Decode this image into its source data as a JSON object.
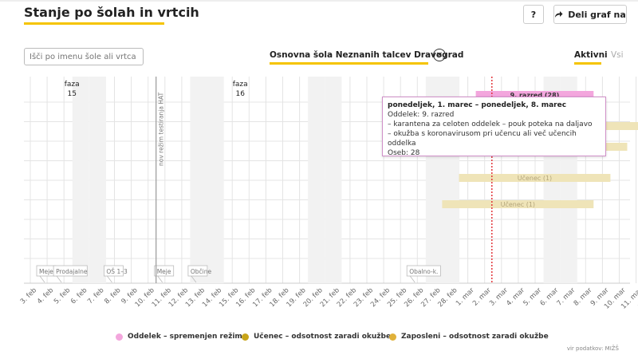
{
  "header": {
    "title": "Stanje po šolah in vrtcih",
    "help_label": "?",
    "share_label": "Deli graf na"
  },
  "filters": {
    "search_placeholder": "Išči po imenu šole ali vrtca",
    "selected_school": "Osnovna šola Neznanih talcev Dravograd",
    "tab_active": "Aktivni",
    "tab_all": "Vsi"
  },
  "chart_data": {
    "type": "timeline",
    "x_ticks": [
      "3. feb",
      "4. feb",
      "5. feb",
      "6. feb",
      "7. feb",
      "8. feb",
      "9. feb",
      "10. feb",
      "11. feb",
      "12. feb",
      "13. feb",
      "14. feb",
      "15. feb",
      "16. feb",
      "17. feb",
      "18. feb",
      "19. feb",
      "20. feb",
      "21. feb",
      "22. feb",
      "23. feb",
      "24. feb",
      "25. feb",
      "26. feb",
      "27. feb",
      "28. feb",
      "1. mar",
      "2. mar",
      "3. mar",
      "4. mar",
      "5. mar",
      "6. mar",
      "7. mar",
      "8. mar",
      "9. mar",
      "10. mar",
      "11. mar",
      "12. mar"
    ],
    "phases": [
      {
        "label": "faza",
        "number": "15",
        "tick": "5. feb"
      },
      {
        "label": "faza",
        "number": "16",
        "tick": "15. feb"
      }
    ],
    "markers": [
      {
        "label": "nov režim testiranja HAT",
        "tick": "10. feb"
      }
    ],
    "today_tick": "3. mar",
    "events": [
      {
        "label": "Meje",
        "from": "3. feb",
        "to": "4. feb"
      },
      {
        "label": "Prodajalne",
        "from": "4. feb",
        "to": "6. feb"
      },
      {
        "label": "OŠ 1–3",
        "from": "7. feb",
        "to": "8. feb"
      },
      {
        "label": "Meje",
        "from": "10. feb",
        "to": "11. feb"
      },
      {
        "label": "Občine",
        "from": "12. feb",
        "to": "13. feb"
      },
      {
        "label": "Obalno-k.",
        "from": "25. feb",
        "to": "27. feb"
      }
    ],
    "rows": [
      {
        "label": "9. razred (28)",
        "from": "1. mar",
        "to": "8. mar",
        "type": "oddelek"
      },
      {
        "label": "",
        "from": "2. mar",
        "to": "11. mar",
        "type": "zaposleni"
      },
      {
        "label": "",
        "from": "1. mar",
        "to": "10. mar",
        "type": "zaposleni"
      },
      {
        "label": "Učenec (1)",
        "from": "28. feb",
        "to": "9. mar",
        "type": "zaposleni"
      },
      {
        "label": "Učenec (1)",
        "from": "27. feb",
        "to": "8. mar",
        "type": "zaposleni"
      }
    ]
  },
  "tooltip": {
    "title": "ponedeljek, 1. marec – ponedeljek, 8. marec",
    "line1": "Oddelek: 9. razred",
    "line2": "– karantena za celoten oddelek – pouk poteka na daljavo",
    "line3": "– okužba s koronavirusom pri učencu ali več učencih oddelka",
    "line4": "Oseb: 28"
  },
  "legend": {
    "items": [
      {
        "label": "Oddelek – spremenjen režim",
        "color": "#f3a6dd"
      },
      {
        "label": "Učenec – odsotnost zaradi okužbe",
        "color": "#c8a51a"
      },
      {
        "label": "Zaposleni – odsotnost zaradi okužbe",
        "color": "#e0b13a"
      }
    ]
  },
  "source": "vir podatkov: MIŽŠ",
  "colors": {
    "accent": "#f5c400",
    "oddelek_bar": "#f3a6dd",
    "employee_bar": "#efe4b8",
    "today_line": "#e0282e"
  }
}
